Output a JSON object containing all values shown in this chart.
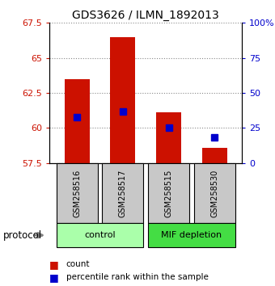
{
  "title": "GDS3626 / ILMN_1892013",
  "samples": [
    "GSM258516",
    "GSM258517",
    "GSM258515",
    "GSM258530"
  ],
  "bar_values": [
    63.5,
    66.5,
    61.1,
    58.6
  ],
  "percentile_values": [
    60.75,
    61.2,
    60.0,
    59.35
  ],
  "ylim_left": [
    57.5,
    67.5
  ],
  "ylim_right": [
    0,
    100
  ],
  "yticks_left": [
    57.5,
    60.0,
    62.5,
    65.0,
    67.5
  ],
  "ytick_labels_left": [
    "57.5",
    "60",
    "62.5",
    "65",
    "67.5"
  ],
  "yticks_right": [
    0,
    25,
    50,
    75,
    100
  ],
  "ytick_labels_right": [
    "0",
    "25",
    "50",
    "75",
    "100%"
  ],
  "bar_color": "#cc1100",
  "percentile_color": "#0000cc",
  "groups": [
    {
      "label": "control",
      "samples": [
        0,
        1
      ],
      "color": "#aaffaa"
    },
    {
      "label": "MIF depletion",
      "samples": [
        2,
        3
      ],
      "color": "#44dd44"
    }
  ],
  "group_row_color": "#c8c8c8",
  "grid_color": "#888888",
  "bar_width": 0.55,
  "percentile_marker_size": 6,
  "legend_count_label": "count",
  "legend_percentile_label": "percentile rank within the sample",
  "protocol_label": "protocol"
}
